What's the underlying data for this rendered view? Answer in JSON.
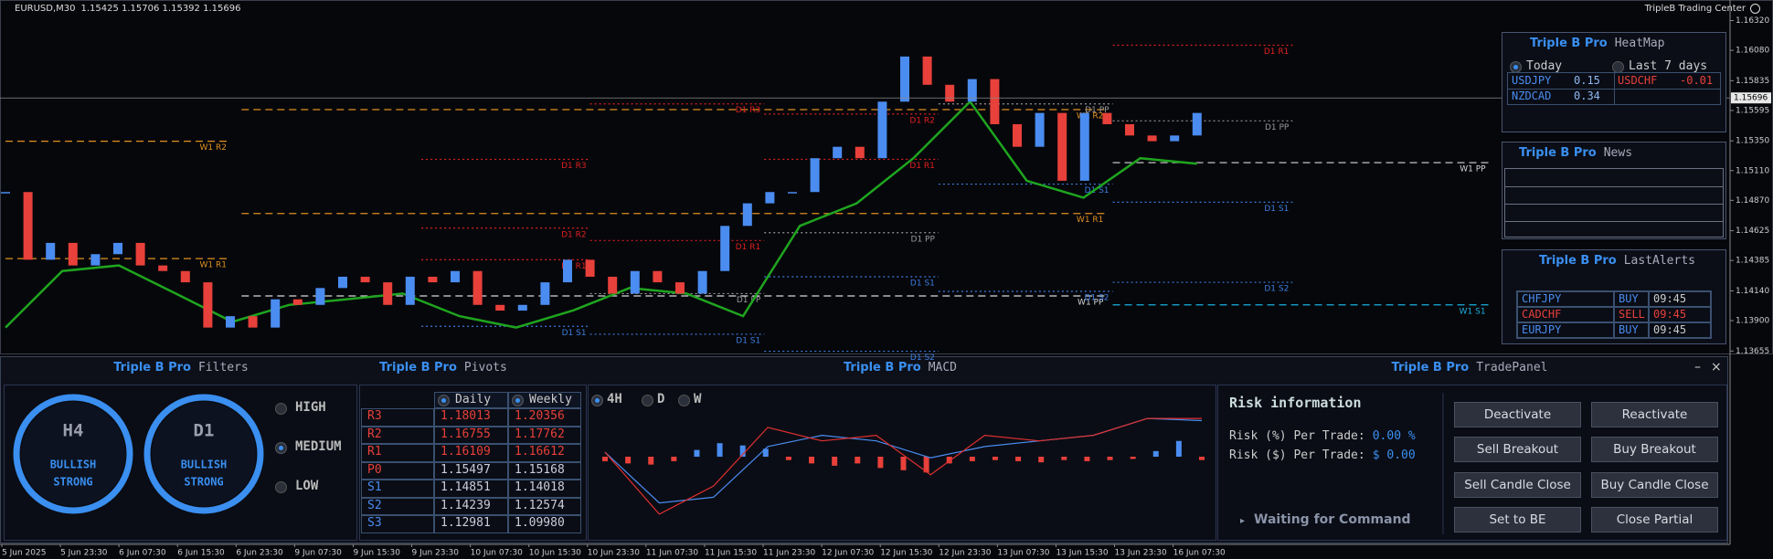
{
  "header": {
    "symbol": "EURUSD,M30",
    "ohlc": "1.15425 1.15706 1.15392 1.15696",
    "brand": "TripleB Trading Center"
  },
  "chart_data": [
    {
      "type": "candlestick",
      "categories": [
        "5 Jun 2025",
        "5 Jun 23:30",
        "6 Jun 07:30",
        "6 Jun 15:30",
        "6 Jun 23:30",
        "9 Jun 07:30",
        "9 Jun 15:30",
        "9 Jun 23:30",
        "10 Jun 07:30",
        "10 Jun 15:30",
        "10 Jun 23:30",
        "11 Jun 07:30",
        "11 Jun 15:30",
        "11 Jun 23:30",
        "12 Jun 07:30",
        "12 Jun 15:30",
        "12 Jun 23:30",
        "13 Jun 07:30",
        "13 Jun 15:30",
        "13 Jun 23:30",
        "16 Jun 07:30"
      ],
      "closes": [
        1.14937,
        1.14391,
        1.14527,
        1.14345,
        1.14436,
        1.14527,
        1.14345,
        1.143,
        1.14209,
        1.13844,
        1.13936,
        1.13844,
        1.14072,
        1.14027,
        1.14163,
        1.14254,
        1.14209,
        1.14027,
        1.14254,
        1.14209,
        1.143,
        1.14027,
        1.13981,
        1.14027,
        1.14209,
        1.14391,
        1.14254,
        1.14118,
        1.143,
        1.14209,
        1.14118,
        1.143,
        1.14664,
        1.14846,
        1.14937,
        1.14937,
        1.1521,
        1.15302,
        1.1521,
        1.15666,
        1.1603,
        1.15802,
        1.15666,
        1.15848,
        1.15484,
        1.15302,
        1.15575,
        1.15028,
        1.15575,
        1.15484,
        1.15393,
        1.15347,
        1.15393,
        1.15575
      ],
      "trail": [
        1.13844,
        1.143,
        1.14345,
        1.14118,
        1.1389,
        1.14027,
        1.14072,
        1.14118,
        1.13936,
        1.13844,
        1.13981,
        1.14163,
        1.14118,
        1.13936,
        1.14664,
        1.14846,
        1.1521,
        1.15666,
        1.15028,
        1.14892,
        1.1521,
        1.15165
      ],
      "colors": {
        "up": "#4a8cf0",
        "down": "#e8403a",
        "trail": "#1fa51f",
        "last": "#8a8a8a"
      },
      "ylim": [
        1.13635,
        1.16449
      ],
      "yticks": [
        {
          "value": 1.1632,
          "label": "1.16320"
        },
        {
          "value": 1.1608,
          "label": "1.16080"
        },
        1.15835,
        1.15595,
        {
          "value": 1.1535,
          "label": "1.15350"
        },
        {
          "value": 1.1511,
          "label": "1.15110"
        },
        {
          "value": 1.1487,
          "label": "1.14870"
        },
        1.14625,
        1.14385,
        {
          "value": 1.1414,
          "label": "1.14140"
        },
        {
          "value": 1.139,
          "label": "1.13900"
        },
        1.13655
      ],
      "last": {
        "value": 1.15696,
        "label": "1.15696"
      },
      "pivots": [
        {
          "label": "W1 R2",
          "price": 1.15347,
          "from": 0,
          "to": 10,
          "color": "#e0901e",
          "dash": "dashed"
        },
        {
          "label": "W1 R1",
          "price": 1.144,
          "from": 0,
          "to": 10,
          "color": "#e0901e",
          "dash": "dashed"
        },
        {
          "label": "W1 R2",
          "price": 1.15602,
          "from": 10.5,
          "to": 49,
          "color": "#e0901e",
          "dash": "dashed"
        },
        {
          "label": "W1 R1",
          "price": 1.14764,
          "from": 10.5,
          "to": 49,
          "color": "#e0901e",
          "dash": "dashed"
        },
        {
          "label": "W1 PP",
          "price": 1.14099,
          "from": 10.5,
          "to": 49,
          "color": "#d8d8d8",
          "dash": "dashed"
        },
        {
          "label": "W1 PP",
          "price": 1.15174,
          "from": 49.25,
          "to": 66,
          "color": "#d8d8d8",
          "dash": "dashed"
        },
        {
          "label": "W1 S1",
          "price": 1.14027,
          "from": 49.25,
          "to": 66,
          "color": "#1ab0e0",
          "dash": "dashed"
        },
        {
          "label": "D1 R3",
          "price": 1.15201,
          "from": 18.5,
          "to": 26,
          "color": "#e02020",
          "dash": "dotted"
        },
        {
          "label": "D1 R2",
          "price": 1.14646,
          "from": 18.5,
          "to": 26,
          "color": "#e02020",
          "dash": "dotted"
        },
        {
          "label": "D1 R1",
          "price": 1.14391,
          "from": 18.5,
          "to": 26,
          "color": "#e02020",
          "dash": "dotted"
        },
        {
          "label": "D1 S1",
          "price": 1.13854,
          "from": 18.5,
          "to": 26,
          "color": "#3c7ee0",
          "dash": "dotted"
        },
        {
          "label": "D1 R3",
          "price": 1.15648,
          "from": 26,
          "to": 33.75,
          "color": "#e02020",
          "dash": "dotted"
        },
        {
          "label": "D1 R1",
          "price": 1.14546,
          "from": 26,
          "to": 33.75,
          "color": "#e02020",
          "dash": "dotted"
        },
        {
          "label": "D1 PP",
          "price": 1.14118,
          "from": 26,
          "to": 33.75,
          "color": "#999999",
          "dash": "dotted"
        },
        {
          "label": "D1 S1",
          "price": 1.1379,
          "from": 26,
          "to": 33.75,
          "color": "#3c7ee0",
          "dash": "dotted"
        },
        {
          "label": "D1 R2",
          "price": 1.15566,
          "from": 33.75,
          "to": 41.5,
          "color": "#e02020",
          "dash": "dotted"
        },
        {
          "label": "D1 R1",
          "price": 1.15201,
          "from": 33.75,
          "to": 41.5,
          "color": "#e02020",
          "dash": "dotted"
        },
        {
          "label": "D1 PP",
          "price": 1.14609,
          "from": 33.75,
          "to": 41.5,
          "color": "#999999",
          "dash": "dotted"
        },
        {
          "label": "D1 S1",
          "price": 1.14254,
          "from": 33.75,
          "to": 41.5,
          "color": "#3c7ee0",
          "dash": "dotted"
        },
        {
          "label": "D1 S2",
          "price": 1.13653,
          "from": 33.75,
          "to": 41.5,
          "color": "#3c7ee0",
          "dash": "dotted"
        },
        {
          "label": "D1 PP",
          "price": 1.15648,
          "from": 41.5,
          "to": 49.25,
          "color": "#999999",
          "dash": "dotted"
        },
        {
          "label": "D1 S1",
          "price": 1.15001,
          "from": 41.5,
          "to": 49.25,
          "color": "#3c7ee0",
          "dash": "dotted"
        },
        {
          "label": "D1 S2",
          "price": 1.14136,
          "from": 41.5,
          "to": 49.25,
          "color": "#3c7ee0",
          "dash": "dotted"
        },
        {
          "label": "D1 R1",
          "price": 1.16121,
          "from": 49.25,
          "to": 57.25,
          "color": "#e02020",
          "dash": "dotted"
        },
        {
          "label": "D1 PP",
          "price": 1.15511,
          "from": 49.25,
          "to": 57.25,
          "color": "#999999",
          "dash": "dotted"
        },
        {
          "label": "D1 S1",
          "price": 1.14855,
          "from": 49.25,
          "to": 57.25,
          "color": "#3c7ee0",
          "dash": "dotted"
        },
        {
          "label": "D1 S2",
          "price": 1.14209,
          "from": 49.25,
          "to": 57.25,
          "color": "#3c7ee0",
          "dash": "dotted"
        }
      ]
    },
    {
      "type": "macd",
      "histogram": [
        -4,
        -6,
        -7,
        -4,
        6,
        12,
        10,
        7,
        -3,
        -6,
        -8,
        -6,
        -10,
        -12,
        -14,
        -6,
        -4,
        -3,
        -4,
        -5,
        -3,
        -4,
        -3,
        -2,
        5,
        14,
        -3
      ],
      "macd": [
        4,
        -51,
        -26,
        26,
        14,
        19,
        -16,
        19,
        14,
        19,
        34,
        34
      ],
      "signal": [
        4,
        -41,
        -36,
        9,
        19,
        14,
        -1,
        9,
        14,
        19,
        34,
        32
      ],
      "colors": {
        "up": "#4a8cf0",
        "down": "#e8403a",
        "macd": "#e03030",
        "signal": "#4a8cf0"
      },
      "ylim": [
        -60,
        60
      ]
    }
  ],
  "heatmap": {
    "brand": "Triple B Pro",
    "title": "HeatMap",
    "options": [
      "Today",
      "Last 7 days"
    ],
    "selected": 0,
    "rows": [
      [
        "USDJPY",
        "0.15",
        "USDCHF",
        "-0.01"
      ],
      [
        "NZDCAD",
        "0.34"
      ]
    ]
  },
  "news": {
    "brand": "Triple B Pro",
    "title": "News"
  },
  "alerts": {
    "brand": "Triple B Pro",
    "title": "LastAlerts",
    "rows": [
      [
        "CHFJPY",
        "BUY",
        "09:45"
      ],
      [
        "CADCHF",
        "SELL",
        "09:45"
      ],
      [
        "EURJPY",
        "BUY",
        "09:45"
      ]
    ],
    "row_colors": [
      "#4a8cf0",
      "#e8403a",
      "#4a8cf0"
    ]
  },
  "filters": {
    "brand": "Triple B Pro",
    "title": "Filters",
    "gauges": [
      {
        "timeframe": "H4",
        "bias": "BULLISH",
        "strength": "STRONG"
      },
      {
        "timeframe": "D1",
        "bias": "BULLISH",
        "strength": "STRONG"
      }
    ],
    "levels": [
      "HIGH",
      "MEDIUM",
      "LOW"
    ],
    "selected": 1
  },
  "pivots": {
    "brand": "Triple B Pro",
    "title": "Pivots",
    "columns": [
      "Daily",
      "Weekly"
    ],
    "rows": [
      [
        "R3",
        "1.18013",
        "1.20356"
      ],
      [
        "R2",
        "1.16755",
        "1.17762"
      ],
      [
        "R1",
        "1.16109",
        "1.16612"
      ],
      [
        "P0",
        "1.15497",
        "1.15168"
      ],
      [
        "S1",
        "1.14851",
        "1.14018"
      ],
      [
        "S2",
        "1.14239",
        "1.12574"
      ],
      [
        "S3",
        "1.12981",
        "1.09980"
      ]
    ],
    "row_colors": [
      "#e8403a",
      "#e8403a",
      "#e8403a",
      "#e8403a",
      "#4a8cf0",
      "#4a8cf0",
      "#4a8cf0"
    ]
  },
  "macd": {
    "brand": "Triple B Pro",
    "title": "MACD",
    "timeframes": [
      "4H",
      "D",
      "W"
    ],
    "selected": 0
  },
  "trade": {
    "brand": "Triple B Pro",
    "title": "TradePanel",
    "heading": "Risk information",
    "risk": [
      {
        "label": "Risk (%) Per Trade:",
        "value": "0.00 %"
      },
      {
        "label": "Risk ($) Per Trade:",
        "value": "$ 0.00"
      }
    ],
    "status": "Waiting for Command",
    "buttons": [
      "Deactivate",
      "Reactivate",
      "Sell Breakout",
      "Buy Breakout",
      "Sell Candle Close",
      "Buy Candle Close",
      "Set to BE",
      "Close Partial"
    ]
  }
}
